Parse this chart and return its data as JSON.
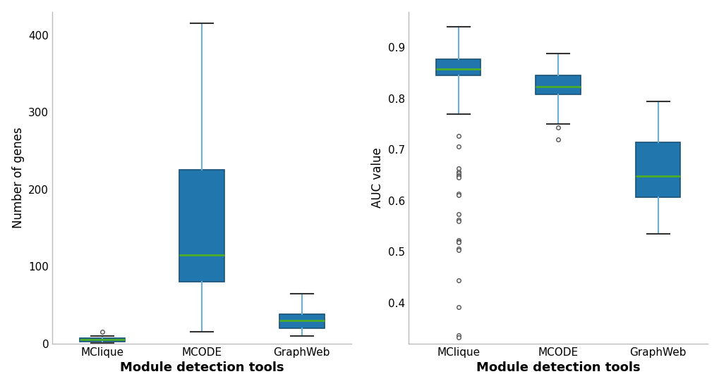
{
  "left_plot": {
    "ylabel": "Number of genes",
    "xlabel": "Module detection tools",
    "categories": [
      "MClique",
      "MCODE",
      "GraphWeb"
    ],
    "box_stats": [
      {
        "label": "MClique",
        "q1": 3,
        "median": 5,
        "q3": 7,
        "whislo": 1,
        "whishi": 10,
        "fliers": [
          15
        ]
      },
      {
        "label": "MCODE",
        "q1": 80,
        "median": 115,
        "q3": 225,
        "whislo": 15,
        "whishi": 415,
        "fliers": []
      },
      {
        "label": "GraphWeb",
        "q1": 20,
        "median": 30,
        "q3": 38,
        "whislo": 10,
        "whishi": 65,
        "fliers": []
      }
    ],
    "ylim": [
      0,
      430
    ],
    "yticks": [
      0,
      100,
      200,
      300,
      400
    ]
  },
  "right_plot": {
    "ylabel": "AUC value",
    "xlabel": "Module detection tools",
    "categories": [
      "MClique",
      "MCODE",
      "GraphWeb"
    ],
    "box_stats": [
      {
        "label": "MClique",
        "q1": 0.845,
        "median": 0.858,
        "q3": 0.877,
        "whislo": 0.77,
        "whishi": 0.94,
        "fliers": [
          0.727,
          0.706,
          0.664,
          0.657,
          0.653,
          0.65,
          0.648,
          0.645,
          0.614,
          0.611,
          0.574,
          0.563,
          0.56,
          0.522,
          0.52,
          0.519,
          0.506,
          0.503,
          0.444,
          0.392,
          0.337,
          0.332
        ]
      },
      {
        "label": "MCODE",
        "q1": 0.808,
        "median": 0.824,
        "q3": 0.845,
        "whislo": 0.75,
        "whishi": 0.888,
        "fliers": [
          0.72,
          0.744
        ]
      },
      {
        "label": "GraphWeb",
        "q1": 0.607,
        "median": 0.648,
        "q3": 0.715,
        "whislo": 0.535,
        "whishi": 0.795,
        "fliers": []
      }
    ],
    "ylim": [
      0.32,
      0.97
    ],
    "yticks": [
      0.4,
      0.5,
      0.6,
      0.7,
      0.8,
      0.9
    ]
  },
  "box_facecolor": "#2176ae",
  "box_edgecolor": "#1a5276",
  "median_color": "#4dac26",
  "whisker_color": "#6baed6",
  "cap_color": "#333333",
  "flier_facecolor": "white",
  "flier_edgecolor": "#555555",
  "background_color": "white",
  "spine_color": "#bbbbbb"
}
